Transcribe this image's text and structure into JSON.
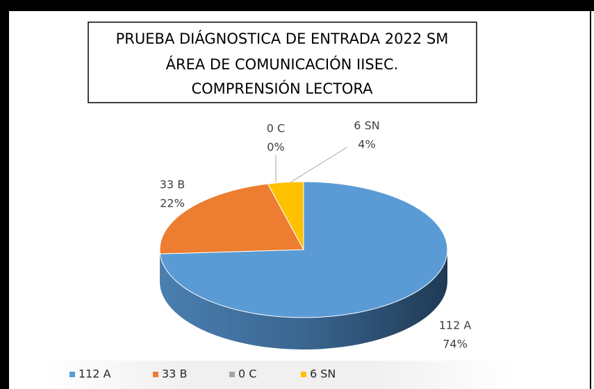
{
  "chart_data": {
    "type": "pie",
    "title": [
      "PRUEBA DIÁGNOSTICA DE ENTRADA 2022 SM",
      "ÁREA DE COMUNICACIÓN IISEC.",
      "COMPRENSIÓN LECTORA"
    ],
    "categories": [
      "112 A",
      "33 B",
      "0 C",
      "6 SN"
    ],
    "values": [
      74,
      22,
      0,
      4
    ],
    "value_labels": [
      "74%",
      "22%",
      "0%",
      "4%"
    ],
    "colors": [
      "#5b9bd5",
      "#ed7d31",
      "#a5a5a5",
      "#ffc000"
    ],
    "legend": "bottom"
  }
}
